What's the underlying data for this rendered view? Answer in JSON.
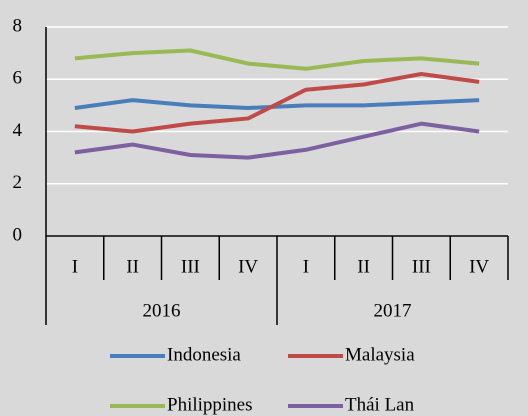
{
  "chart_data": {
    "type": "line",
    "categories": [
      "I",
      "II",
      "III",
      "IV",
      "I",
      "II",
      "III",
      "IV"
    ],
    "groups": [
      "2016",
      "2017"
    ],
    "series": [
      {
        "name": "Indonesia",
        "color": "#4a7ebb",
        "values": [
          4.9,
          5.2,
          5.0,
          4.9,
          5.0,
          5.0,
          5.1,
          5.2
        ]
      },
      {
        "name": "Malaysia",
        "color": "#be4b48",
        "values": [
          4.2,
          4.0,
          4.3,
          4.5,
          5.6,
          5.8,
          6.2,
          5.9
        ]
      },
      {
        "name": "Philippines",
        "color": "#98b954",
        "values": [
          6.8,
          7.0,
          7.1,
          6.6,
          6.4,
          6.7,
          6.8,
          6.6
        ]
      },
      {
        "name": "Thái Lan",
        "color": "#7d60a0",
        "values": [
          3.2,
          3.5,
          3.1,
          3.0,
          3.3,
          3.8,
          4.3,
          4.0
        ]
      }
    ],
    "ylim": [
      0,
      8
    ],
    "yticks": [
      0,
      2,
      4,
      6,
      8
    ],
    "grid": true
  }
}
